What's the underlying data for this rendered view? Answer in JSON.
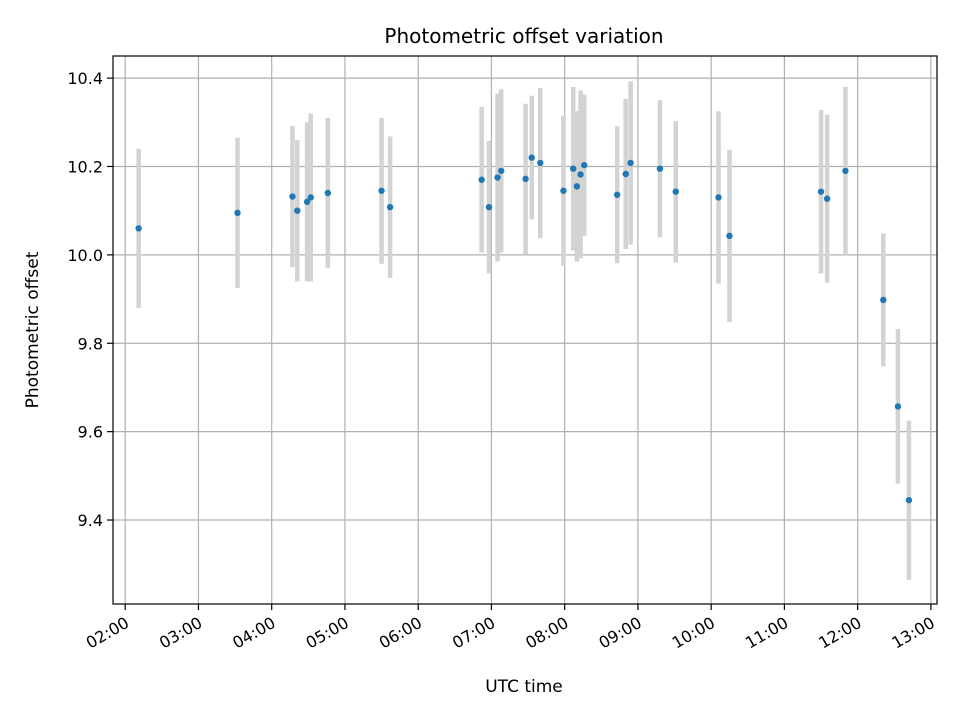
{
  "chart_data": {
    "type": "scatter",
    "title": "Photometric offset variation",
    "xlabel": "UTC time",
    "ylabel": "Photometric offset",
    "xlim": [
      "01:50",
      "13:05"
    ],
    "ylim": [
      9.21,
      10.45
    ],
    "x_ticks": [
      "02:00",
      "03:00",
      "04:00",
      "05:00",
      "06:00",
      "07:00",
      "08:00",
      "09:00",
      "10:00",
      "11:00",
      "12:00",
      "13:00"
    ],
    "y_ticks": [
      "9.4",
      "9.6",
      "9.8",
      "10.0",
      "10.2",
      "10.4"
    ],
    "grid": true,
    "marker_color": "#1f77b4",
    "errorbar_color": "#d3d3d3",
    "points": [
      {
        "x": "02:11",
        "y": 10.06,
        "err": 0.18
      },
      {
        "x": "03:32",
        "y": 10.095,
        "err": 0.17
      },
      {
        "x": "04:17",
        "y": 10.132,
        "err": 0.16
      },
      {
        "x": "04:21",
        "y": 10.1,
        "err": 0.16
      },
      {
        "x": "04:29",
        "y": 10.12,
        "err": 0.18
      },
      {
        "x": "04:32",
        "y": 10.13,
        "err": 0.19
      },
      {
        "x": "04:46",
        "y": 10.14,
        "err": 0.17
      },
      {
        "x": "05:30",
        "y": 10.145,
        "err": 0.165
      },
      {
        "x": "05:37",
        "y": 10.108,
        "err": 0.16
      },
      {
        "x": "06:52",
        "y": 10.17,
        "err": 0.165
      },
      {
        "x": "06:58",
        "y": 10.108,
        "err": 0.15
      },
      {
        "x": "07:05",
        "y": 10.175,
        "err": 0.19
      },
      {
        "x": "07:08",
        "y": 10.19,
        "err": 0.185
      },
      {
        "x": "07:28",
        "y": 10.172,
        "err": 0.17
      },
      {
        "x": "07:33",
        "y": 10.22,
        "err": 0.14
      },
      {
        "x": "07:40",
        "y": 10.208,
        "err": 0.17
      },
      {
        "x": "07:59",
        "y": 10.145,
        "err": 0.17
      },
      {
        "x": "08:07",
        "y": 10.195,
        "err": 0.185
      },
      {
        "x": "08:10",
        "y": 10.155,
        "err": 0.17
      },
      {
        "x": "08:13",
        "y": 10.182,
        "err": 0.19
      },
      {
        "x": "08:16",
        "y": 10.203,
        "err": 0.16
      },
      {
        "x": "08:43",
        "y": 10.136,
        "err": 0.155
      },
      {
        "x": "08:50",
        "y": 10.183,
        "err": 0.17
      },
      {
        "x": "08:54",
        "y": 10.208,
        "err": 0.185
      },
      {
        "x": "09:18",
        "y": 10.195,
        "err": 0.155
      },
      {
        "x": "09:31",
        "y": 10.143,
        "err": 0.16
      },
      {
        "x": "10:06",
        "y": 10.13,
        "err": 0.195
      },
      {
        "x": "10:15",
        "y": 10.043,
        "err": 0.195
      },
      {
        "x": "11:30",
        "y": 10.143,
        "err": 0.185
      },
      {
        "x": "11:35",
        "y": 10.127,
        "err": 0.19
      },
      {
        "x": "11:50",
        "y": 10.19,
        "err": 0.19
      },
      {
        "x": "12:21",
        "y": 9.898,
        "err": 0.15
      },
      {
        "x": "12:33",
        "y": 9.657,
        "err": 0.175
      },
      {
        "x": "12:42",
        "y": 9.445,
        "err": 0.18
      }
    ]
  }
}
